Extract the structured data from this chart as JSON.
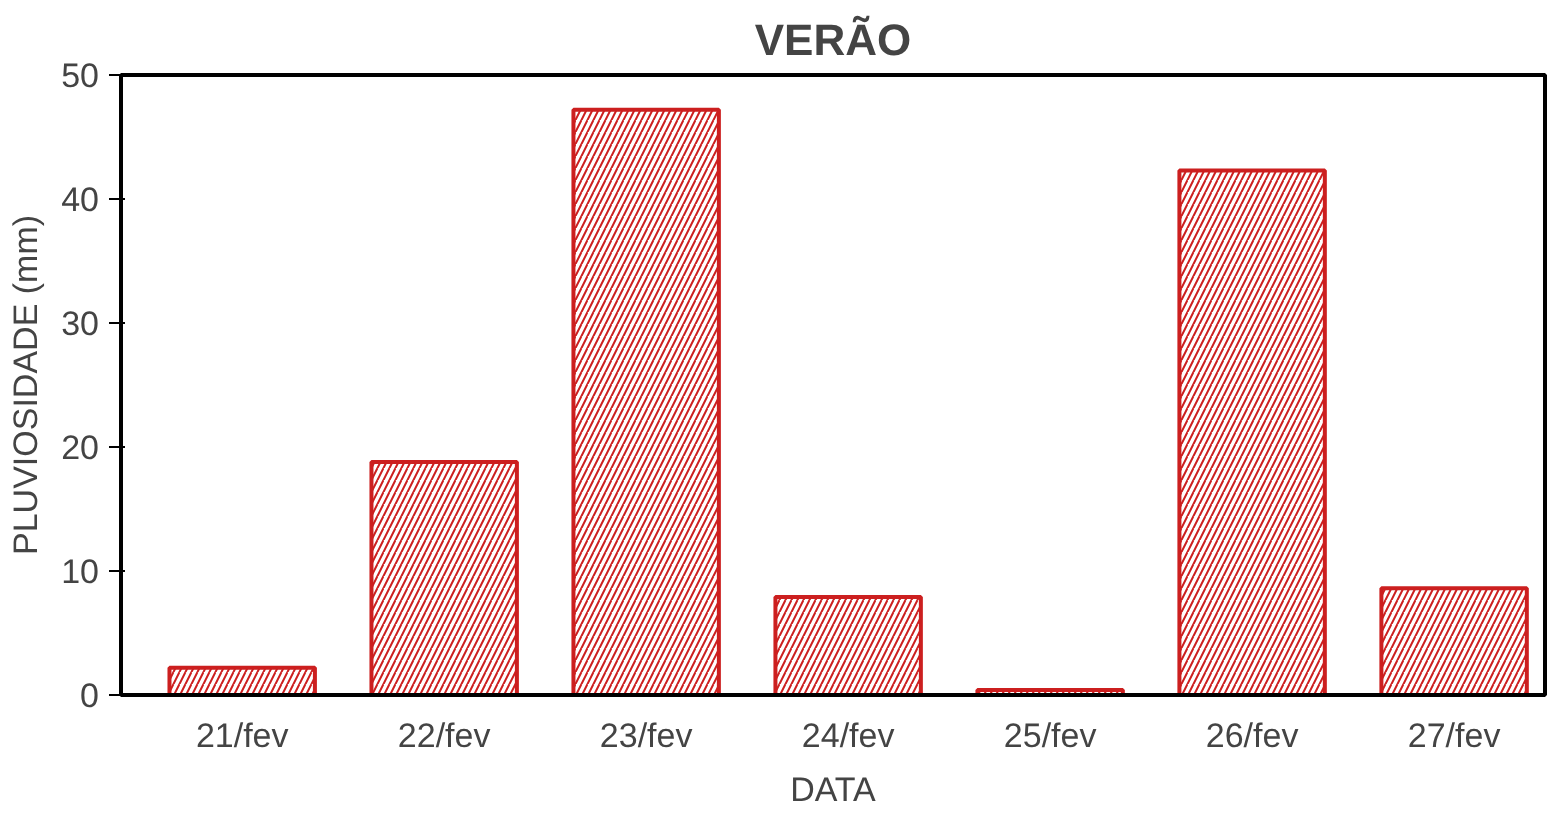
{
  "chart_data": {
    "type": "bar",
    "title": "VERÃO",
    "xlabel": "DATA",
    "ylabel": "PLUVIOSIDADE (mm)",
    "categories": [
      "21/fev",
      "22/fev",
      "23/fev",
      "24/fev",
      "25/fev",
      "26/fev",
      "27/fev"
    ],
    "values": [
      2.2,
      18.8,
      47.2,
      7.9,
      0.4,
      42.3,
      8.6
    ],
    "color": "#cc1f1f",
    "ylim": [
      0,
      50
    ],
    "yticks": [
      0,
      10,
      20,
      30,
      40,
      50
    ],
    "grid": false
  }
}
